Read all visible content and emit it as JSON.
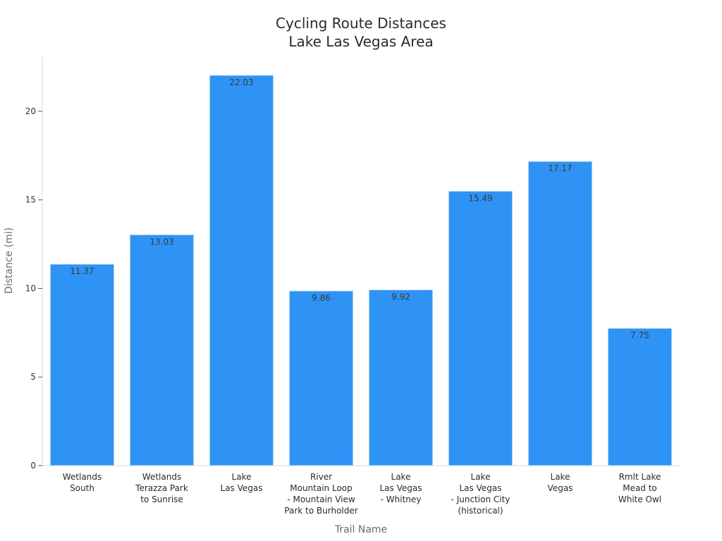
{
  "chart_data": {
    "type": "bar",
    "title": [
      "Cycling Route Distances",
      "Lake Las Vegas Area"
    ],
    "xlabel": "Trail Name",
    "ylabel": "Distance (mi)",
    "ylim": [
      0,
      23.1
    ],
    "yticks": [
      0,
      5,
      10,
      15,
      20
    ],
    "grid": false,
    "categories": [
      [
        "Wetlands",
        "South"
      ],
      [
        "Wetlands",
        "Terazza Park",
        "to Sunrise"
      ],
      [
        "Lake",
        "Las Vegas"
      ],
      [
        "River",
        "Mountain Loop",
        "- Mountain View",
        "Park to Burholder"
      ],
      [
        "Lake",
        "Las Vegas",
        "- Whitney"
      ],
      [
        "Lake",
        "Las Vegas",
        "- Junction City",
        "(historical)"
      ],
      [
        "Lake",
        "Vegas"
      ],
      [
        "Rmlt Lake",
        "Mead to",
        "White Owl"
      ]
    ],
    "values": [
      11.37,
      13.03,
      22.03,
      9.86,
      9.92,
      15.49,
      17.17,
      7.75
    ],
    "value_labels": [
      "11.37",
      "13.03",
      "22.03",
      "9.86",
      "9.92",
      "15.49",
      "17.17",
      "7.75"
    ],
    "bar_color": "#2e93f5"
  }
}
